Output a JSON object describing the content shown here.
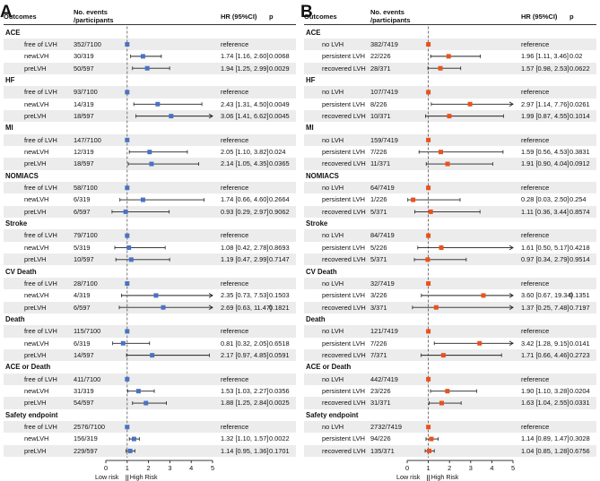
{
  "chart_data": [
    {
      "type": "forest",
      "panel": "A",
      "color": "#4a72c4",
      "headers": {
        "outcomes": "Outcomes",
        "events": "No. events\n/participants",
        "hr": "HR (95%CI)",
        "p": "p"
      },
      "xaxis": {
        "ticks": [
          "0",
          "1",
          "2",
          "3",
          "4",
          "5"
        ],
        "range": [
          0,
          5
        ],
        "ref": 1
      },
      "risk_labels": {
        "low": "Low risk",
        "high": "High Risk"
      },
      "groups": [
        {
          "name": "ACE",
          "rows": [
            {
              "label": "free of LVH",
              "events": "352/7100",
              "hr": "reference",
              "p": "",
              "est": 1,
              "lo": 1,
              "hi": 1
            },
            {
              "label": "newLVH",
              "events": "30/319",
              "hr": "1.74 [1.16, 2.60]",
              "p": "0.0068",
              "est": 1.74,
              "lo": 1.16,
              "hi": 2.6
            },
            {
              "label": "preLVH",
              "events": "50/597",
              "hr": "1.94 [1.25, 2.99]",
              "p": "0.0029",
              "est": 1.94,
              "lo": 1.25,
              "hi": 2.99
            }
          ]
        },
        {
          "name": "HF",
          "rows": [
            {
              "label": "free of LVH",
              "events": "93/7100",
              "hr": "reference",
              "p": "",
              "est": 1,
              "lo": 1,
              "hi": 1
            },
            {
              "label": "newLVH",
              "events": "14/319",
              "hr": "2.43 [1.31, 4.50]",
              "p": "0.0049",
              "est": 2.43,
              "lo": 1.31,
              "hi": 4.5
            },
            {
              "label": "preLVH",
              "events": "18/597",
              "hr": "3.06 [1.41, 6.62]",
              "p": "0.0045",
              "est": 3.06,
              "lo": 1.41,
              "hi": 6.62
            }
          ]
        },
        {
          "name": "MI",
          "rows": [
            {
              "label": "free of LVH",
              "events": "147/7100",
              "hr": "reference",
              "p": "",
              "est": 1,
              "lo": 1,
              "hi": 1
            },
            {
              "label": "newLVH",
              "events": "12/319",
              "hr": "2.05 [1.10, 3.82]",
              "p": "0.024",
              "est": 2.05,
              "lo": 1.1,
              "hi": 3.82
            },
            {
              "label": "preLVH",
              "events": "18/597",
              "hr": "2.14 [1.05, 4.35]",
              "p": "0.0365",
              "est": 2.14,
              "lo": 1.05,
              "hi": 4.35
            }
          ]
        },
        {
          "name": "NOMIACS",
          "rows": [
            {
              "label": "free of LVH",
              "events": "58/7100",
              "hr": "reference",
              "p": "",
              "est": 1,
              "lo": 1,
              "hi": 1
            },
            {
              "label": "newLVH",
              "events": "6/319",
              "hr": "1.74 [0.66, 4.60]",
              "p": "0.2664",
              "est": 1.74,
              "lo": 0.66,
              "hi": 4.6
            },
            {
              "label": "preLVH",
              "events": "6/597",
              "hr": "0.93 [0.29, 2.97]",
              "p": "0.9062",
              "est": 0.93,
              "lo": 0.29,
              "hi": 2.97
            }
          ]
        },
        {
          "name": "Stroke",
          "rows": [
            {
              "label": "free of LVH",
              "events": "79/7100",
              "hr": "reference",
              "p": "",
              "est": 1,
              "lo": 1,
              "hi": 1
            },
            {
              "label": "newLVH",
              "events": "5/319",
              "hr": "1.08 [0.42, 2.78]",
              "p": "0.8693",
              "est": 1.08,
              "lo": 0.42,
              "hi": 2.78
            },
            {
              "label": "preLVH",
              "events": "10/597",
              "hr": "1.19 [0.47, 2.99]",
              "p": "0.7147",
              "est": 1.19,
              "lo": 0.47,
              "hi": 2.99
            }
          ]
        },
        {
          "name": "CV Death",
          "rows": [
            {
              "label": "free of LVH",
              "events": "28/7100",
              "hr": "reference",
              "p": "",
              "est": 1,
              "lo": 1,
              "hi": 1
            },
            {
              "label": "newLVH",
              "events": "4/319",
              "hr": "2.35 [0.73, 7.53]",
              "p": "0.1503",
              "est": 2.35,
              "lo": 0.73,
              "hi": 7.53
            },
            {
              "label": "preLVH",
              "events": "6/597",
              "hr": "2.69 [0.63, 11.47]",
              "p": "0.1821",
              "est": 2.69,
              "lo": 0.63,
              "hi": 11.47
            }
          ]
        },
        {
          "name": "Death",
          "rows": [
            {
              "label": "free of LVH",
              "events": "115/7100",
              "hr": "reference",
              "p": "",
              "est": 1,
              "lo": 1,
              "hi": 1
            },
            {
              "label": "newLVH",
              "events": "6/319",
              "hr": "0.81 [0.32, 2.05]",
              "p": "0.6518",
              "est": 0.81,
              "lo": 0.32,
              "hi": 2.05
            },
            {
              "label": "preLVH",
              "events": "14/597",
              "hr": "2.17 [0.97, 4.85]",
              "p": "0.0591",
              "est": 2.17,
              "lo": 0.97,
              "hi": 4.85
            }
          ]
        },
        {
          "name": "ACE or Death",
          "rows": [
            {
              "label": "free of LVH",
              "events": "411/7100",
              "hr": "reference",
              "p": "",
              "est": 1,
              "lo": 1,
              "hi": 1
            },
            {
              "label": "newLVH",
              "events": "31/319",
              "hr": "1.53 [1.03, 2.27]",
              "p": "0.0356",
              "est": 1.53,
              "lo": 1.03,
              "hi": 2.27
            },
            {
              "label": "preLVH",
              "events": "54/597",
              "hr": "1.88 [1.25, 2.84]",
              "p": "0.0025",
              "est": 1.88,
              "lo": 1.25,
              "hi": 2.84
            }
          ]
        },
        {
          "name": "Safety endpoint",
          "rows": [
            {
              "label": "free of LVH",
              "events": "2576/7100",
              "hr": "reference",
              "p": "",
              "est": 1,
              "lo": 1,
              "hi": 1
            },
            {
              "label": "newLVH",
              "events": "156/319",
              "hr": "1.32 [1.10, 1.57]",
              "p": "0.0022",
              "est": 1.32,
              "lo": 1.1,
              "hi": 1.57
            },
            {
              "label": "preLVH",
              "events": "229/597",
              "hr": "1.14 [0.95, 1.36]",
              "p": "0.1701",
              "est": 1.14,
              "lo": 0.95,
              "hi": 1.36
            }
          ]
        }
      ]
    },
    {
      "type": "forest",
      "panel": "B",
      "color": "#e8521e",
      "headers": {
        "outcomes": "Outcomes",
        "events": "No. events\n/participants",
        "hr": "HR (95%CI)",
        "p": "p"
      },
      "xaxis": {
        "ticks": [
          "0",
          "1",
          "2",
          "3",
          "4",
          "5"
        ],
        "range": [
          0,
          5
        ],
        "ref": 1
      },
      "risk_labels": {
        "low": "Low risk",
        "high": "High Risk"
      },
      "groups": [
        {
          "name": "ACE",
          "rows": [
            {
              "label": "no LVH",
              "events": "382/7419",
              "hr": "reference",
              "p": "",
              "est": 1,
              "lo": 1,
              "hi": 1
            },
            {
              "label": "persistent LVH",
              "events": "22/226",
              "hr": "1.96 [1.11, 3.46]",
              "p": "0.02",
              "est": 1.96,
              "lo": 1.11,
              "hi": 3.46
            },
            {
              "label": "recovered LVH",
              "events": "28/371",
              "hr": "1.57 [0.98, 2.53]",
              "p": "0.0622",
              "est": 1.57,
              "lo": 0.98,
              "hi": 2.53
            }
          ]
        },
        {
          "name": "HF",
          "rows": [
            {
              "label": "no LVH",
              "events": "107/7419",
              "hr": "reference",
              "p": "",
              "est": 1,
              "lo": 1,
              "hi": 1
            },
            {
              "label": "persistent LVH",
              "events": "8/226",
              "hr": "2.97 [1.14, 7.76]",
              "p": "0.0261",
              "est": 2.97,
              "lo": 1.14,
              "hi": 7.76
            },
            {
              "label": "recovered LVH",
              "events": "10/371",
              "hr": "1.99 [0.87, 4.55]",
              "p": "0.1014",
              "est": 1.99,
              "lo": 0.87,
              "hi": 4.55
            }
          ]
        },
        {
          "name": "MI",
          "rows": [
            {
              "label": "no LVH",
              "events": "159/7419",
              "hr": "reference",
              "p": "",
              "est": 1,
              "lo": 1,
              "hi": 1
            },
            {
              "label": "persistent LVH",
              "events": "7/226",
              "hr": "1.59 [0.56, 4.53]",
              "p": "0.3831",
              "est": 1.59,
              "lo": 0.56,
              "hi": 4.53
            },
            {
              "label": "recovered LVH",
              "events": "11/371",
              "hr": "1.91 [0.90, 4.04]",
              "p": "0.0912",
              "est": 1.91,
              "lo": 0.9,
              "hi": 4.04
            }
          ]
        },
        {
          "name": "NOMIACS",
          "rows": [
            {
              "label": "no LVH",
              "events": "64/7419",
              "hr": "reference",
              "p": "",
              "est": 1,
              "lo": 1,
              "hi": 1
            },
            {
              "label": "persistent LVH",
              "events": "1/226",
              "hr": "0.28 [0.03, 2.50]",
              "p": "0.254",
              "est": 0.28,
              "lo": 0.03,
              "hi": 2.5
            },
            {
              "label": "recovered LVH",
              "events": "5/371",
              "hr": "1.11 [0.36, 3.44]",
              "p": "0.8574",
              "est": 1.11,
              "lo": 0.36,
              "hi": 3.44
            }
          ]
        },
        {
          "name": "Stroke",
          "rows": [
            {
              "label": "no LVH",
              "events": "84/7419",
              "hr": "reference",
              "p": "",
              "est": 1,
              "lo": 1,
              "hi": 1
            },
            {
              "label": "persistent LVH",
              "events": "5/226",
              "hr": "1.61 [0.50, 5.17]",
              "p": "0.4218",
              "est": 1.61,
              "lo": 0.5,
              "hi": 5.17
            },
            {
              "label": "recovered LVH",
              "events": "5/371",
              "hr": "0.97 [0.34, 2.79]",
              "p": "0.9514",
              "est": 0.97,
              "lo": 0.34,
              "hi": 2.79
            }
          ]
        },
        {
          "name": "CV Death",
          "rows": [
            {
              "label": "no LVH",
              "events": "32/7419",
              "hr": "reference",
              "p": "",
              "est": 1,
              "lo": 1,
              "hi": 1
            },
            {
              "label": "persistent LVH",
              "events": "3/226",
              "hr": "3.60 [0.67, 19.34]",
              "p": "0.1351",
              "est": 3.6,
              "lo": 0.67,
              "hi": 19.34
            },
            {
              "label": "recovered LVH",
              "events": "3/371",
              "hr": "1.37 [0.25, 7.48]",
              "p": "0.7197",
              "est": 1.37,
              "lo": 0.25,
              "hi": 7.48
            }
          ]
        },
        {
          "name": "Death",
          "rows": [
            {
              "label": "no LVH",
              "events": "121/7419",
              "hr": "reference",
              "p": "",
              "est": 1,
              "lo": 1,
              "hi": 1
            },
            {
              "label": "persistent LVH",
              "events": "7/226",
              "hr": "3.42 [1.28, 9.15]",
              "p": "0.0141",
              "est": 3.42,
              "lo": 1.28,
              "hi": 9.15
            },
            {
              "label": "recovered LVH",
              "events": "7/371",
              "hr": "1.71 [0.66, 4.46]",
              "p": "0.2723",
              "est": 1.71,
              "lo": 0.66,
              "hi": 4.46
            }
          ]
        },
        {
          "name": "ACE or Death",
          "rows": [
            {
              "label": "no LVH",
              "events": "442/7419",
              "hr": "reference",
              "p": "",
              "est": 1,
              "lo": 1,
              "hi": 1
            },
            {
              "label": "persistent LVH",
              "events": "23/226",
              "hr": "1.90 [1.10, 3.28]",
              "p": "0.0204",
              "est": 1.9,
              "lo": 1.1,
              "hi": 3.28
            },
            {
              "label": "recovered LVH",
              "events": "31/371",
              "hr": "1.63 [1.04, 2.55]",
              "p": "0.0331",
              "est": 1.63,
              "lo": 1.04,
              "hi": 2.55
            }
          ]
        },
        {
          "name": "Safety endpoint",
          "rows": [
            {
              "label": "no LVH",
              "events": "2732/7419",
              "hr": "reference",
              "p": "",
              "est": 1,
              "lo": 1,
              "hi": 1
            },
            {
              "label": "persistent LVH",
              "events": "94/226",
              "hr": "1.14 [0.89, 1.47]",
              "p": "0.3028",
              "est": 1.14,
              "lo": 0.89,
              "hi": 1.47
            },
            {
              "label": "recovered LVH",
              "events": "135/371",
              "hr": "1.04 [0.85, 1.28]",
              "p": "0.6756",
              "est": 1.04,
              "lo": 0.85,
              "hi": 1.28
            }
          ]
        }
      ]
    }
  ]
}
